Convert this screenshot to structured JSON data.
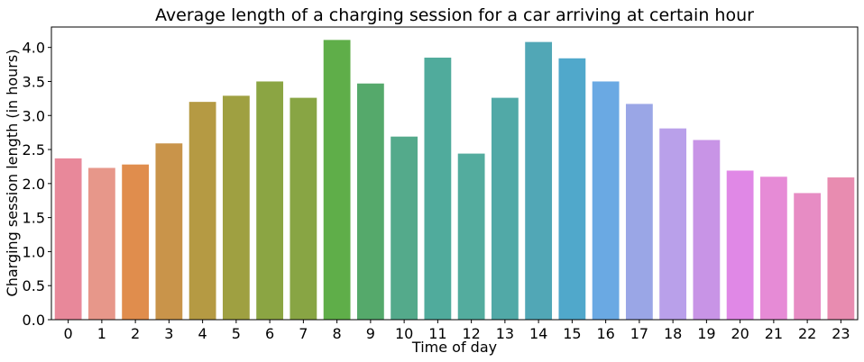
{
  "chart_data": {
    "type": "bar",
    "title": "Average length of a charging session for a car arriving at certain hour",
    "xlabel": "Time of day",
    "ylabel": "Charging session length (in hours)",
    "categories": [
      "0",
      "1",
      "2",
      "3",
      "4",
      "5",
      "6",
      "7",
      "8",
      "9",
      "10",
      "11",
      "12",
      "13",
      "14",
      "15",
      "16",
      "17",
      "18",
      "19",
      "20",
      "21",
      "22",
      "23"
    ],
    "values": [
      2.37,
      2.23,
      2.28,
      2.59,
      3.2,
      3.29,
      3.5,
      3.26,
      4.11,
      3.47,
      2.69,
      3.85,
      2.44,
      3.26,
      4.08,
      3.84,
      3.5,
      3.17,
      2.81,
      2.64,
      2.19,
      2.1,
      1.86,
      2.09
    ],
    "colors": [
      "#e8889a",
      "#e7978a",
      "#e08d4d",
      "#c9944a",
      "#b59a43",
      "#9fa041",
      "#8ba543",
      "#88a544",
      "#5fae49",
      "#55a96b",
      "#54aa8b",
      "#50ab9c",
      "#53ac9e",
      "#51a9a7",
      "#51a7b6",
      "#50a8cb",
      "#6aa9e3",
      "#9aa6e6",
      "#b9a0ea",
      "#c894e6",
      "#e088e6",
      "#e68bd6",
      "#e78cc4",
      "#e88cb0"
    ],
    "yticks": [
      "0.0",
      "0.5",
      "1.0",
      "1.5",
      "2.0",
      "2.5",
      "3.0",
      "3.5",
      "4.0"
    ],
    "ylim": [
      0,
      4.3
    ],
    "grid": false,
    "legend": "none"
  }
}
